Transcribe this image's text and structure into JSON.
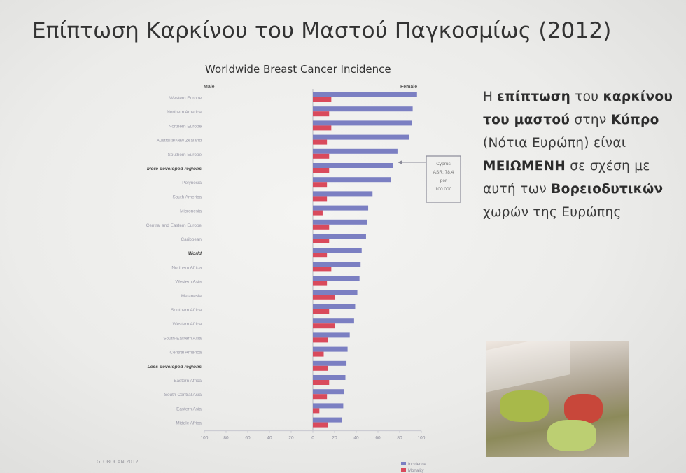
{
  "slide": {
    "title": "Επίπτωση Καρκίνου του Μαστού Παγκοσμίως (2012)"
  },
  "side_text": {
    "p1": "Η ",
    "p2": "επίπτωση",
    "p3": " του ",
    "p4": "καρκίνου του μαστού",
    "p5": " στην ",
    "p6": "Κύπρο",
    "p7": " (Νότια Ευρώπη) είναι ",
    "p8": "ΜΕΙΩΜΕΝΗ",
    "p9": " σε σχέση με αυτή των ",
    "p10": "Βορειοδυτικών",
    "p11": " χωρών της Ευρώπης"
  },
  "colors": {
    "incidence": "#7b7fc2",
    "mortality": "#d94a5c"
  },
  "chart_data": {
    "type": "bar",
    "orientation": "horizontal",
    "title": "Worldwide Breast Cancer Incidence",
    "left_label": "Male",
    "right_label": "Female",
    "xlim": [
      -100,
      100
    ],
    "xticks": [
      100,
      80,
      60,
      40,
      20,
      0,
      20,
      40,
      60,
      80,
      100
    ],
    "categories": [
      "Western Europe",
      "Northern America",
      "Northern Europe",
      "Australia/New Zealand",
      "Southern Europe",
      "More developed regions",
      "Polynesia",
      "South America",
      "Micronesia",
      "Central and Eastern Europe",
      "Caribbean",
      "World",
      "Northern Africa",
      "Western Asia",
      "Melanesia",
      "Southern Africa",
      "Western Africa",
      "South-Eastern Asia",
      "Central America",
      "Less developed regions",
      "Eastern Africa",
      "South-Central Asia",
      "Eastern Asia",
      "Middle Africa"
    ],
    "bold_categories": [
      "More developed regions",
      "World",
      "Less developed regions"
    ],
    "series": [
      {
        "name": "Incidence",
        "values": [
          96,
          92,
          91,
          89,
          78,
          74,
          72,
          55,
          51,
          50,
          49,
          45,
          44,
          43,
          41,
          39,
          38,
          34,
          32,
          31,
          30,
          29,
          28,
          27
        ]
      },
      {
        "name": "Mortality",
        "values": [
          17,
          15,
          17,
          13,
          15,
          15,
          13,
          13,
          9,
          15,
          15,
          13,
          17,
          13,
          20,
          15,
          20,
          14,
          10,
          14,
          15,
          13,
          6,
          14
        ]
      }
    ],
    "annotation": {
      "lines": [
        "Cyprus",
        "ASR: 78.4",
        "per",
        "100 000"
      ]
    },
    "legend": [
      "Incidence",
      "Mortality"
    ]
  },
  "footer": {
    "source": "GLOBOCAN 2012"
  }
}
